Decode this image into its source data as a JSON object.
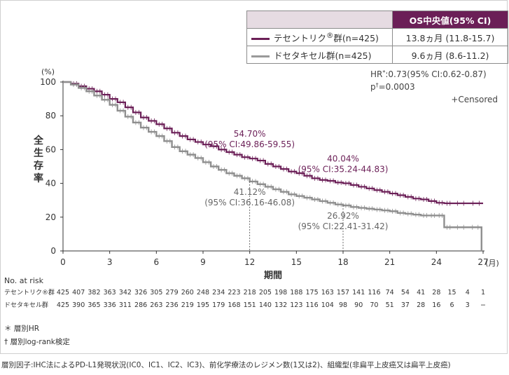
{
  "legend_table": {
    "header": "OS中央値(95% CI)",
    "rows": [
      {
        "name_html": "テセントリク<sup>®</sup>群(n=425)",
        "median": "13.8ヵ月 (11.8-15.7)",
        "color": "#6b1f57"
      },
      {
        "name_html": "ドセタキセル群(n=425)",
        "median": "9.6ヵ月 (8.6-11.2)",
        "color": "#9a9a9a"
      }
    ]
  },
  "stats": {
    "hr_html": "HR<sup>*</sup>:0.73(95% CI:0.62-0.87)",
    "p_html": "p<sup>†</sup>=0.0003",
    "censored": "+Censored"
  },
  "chart_data": {
    "type": "line",
    "ylabel": "全生存率",
    "yunit": "(%)",
    "xlabel": "期間",
    "xunit": "(月)",
    "xlim": [
      0,
      27
    ],
    "ylim": [
      0,
      100
    ],
    "xticks": [
      0,
      3,
      6,
      9,
      12,
      15,
      18,
      21,
      24,
      27
    ],
    "yticks": [
      0,
      20,
      40,
      60,
      80,
      100
    ],
    "series": [
      {
        "name": "テセントリク®群",
        "color": "#6b1f57",
        "points": [
          [
            0,
            100
          ],
          [
            0.5,
            99
          ],
          [
            1,
            97.5
          ],
          [
            1.5,
            96
          ],
          [
            2,
            94.5
          ],
          [
            2.5,
            92.5
          ],
          [
            3,
            90
          ],
          [
            3.5,
            88
          ],
          [
            4,
            85
          ],
          [
            4.5,
            82
          ],
          [
            5,
            79
          ],
          [
            5.5,
            77
          ],
          [
            6,
            75
          ],
          [
            6.5,
            72.5
          ],
          [
            7,
            70
          ],
          [
            7.5,
            68
          ],
          [
            8,
            66
          ],
          [
            8.5,
            64.5
          ],
          [
            9,
            63
          ],
          [
            9.5,
            62
          ],
          [
            10,
            60
          ],
          [
            10.5,
            58.5
          ],
          [
            11,
            57
          ],
          [
            11.5,
            55.5
          ],
          [
            12,
            54.7
          ],
          [
            12.5,
            53.5
          ],
          [
            13,
            51.5
          ],
          [
            13.5,
            50
          ],
          [
            14,
            48.5
          ],
          [
            14.5,
            47
          ],
          [
            15,
            46
          ],
          [
            15.5,
            44.5
          ],
          [
            16,
            43
          ],
          [
            16.5,
            42
          ],
          [
            17,
            41.5
          ],
          [
            17.5,
            40.5
          ],
          [
            18,
            40.04
          ],
          [
            18.5,
            39
          ],
          [
            19,
            38
          ],
          [
            19.5,
            37
          ],
          [
            20,
            36
          ],
          [
            20.5,
            35
          ],
          [
            21,
            34
          ],
          [
            21.5,
            33
          ],
          [
            22,
            32
          ],
          [
            22.5,
            31
          ],
          [
            23,
            30.5
          ],
          [
            23.5,
            29.5
          ],
          [
            24,
            28.5
          ],
          [
            24.5,
            28.2
          ],
          [
            25,
            28.2
          ],
          [
            26,
            28.2
          ],
          [
            27,
            28.2
          ]
        ]
      },
      {
        "name": "ドセタキセル群",
        "color": "#8f8f8f",
        "points": [
          [
            0,
            100
          ],
          [
            0.5,
            98.5
          ],
          [
            1,
            96.5
          ],
          [
            1.5,
            94.5
          ],
          [
            2,
            92
          ],
          [
            2.5,
            89.5
          ],
          [
            3,
            86.5
          ],
          [
            3.5,
            83
          ],
          [
            4,
            79.5
          ],
          [
            4.5,
            76
          ],
          [
            5,
            73
          ],
          [
            5.5,
            70.5
          ],
          [
            6,
            68
          ],
          [
            6.5,
            65
          ],
          [
            7,
            61.5
          ],
          [
            7.5,
            59
          ],
          [
            8,
            57
          ],
          [
            8.5,
            55
          ],
          [
            9,
            52.5
          ],
          [
            9.5,
            50
          ],
          [
            10,
            48
          ],
          [
            10.5,
            46
          ],
          [
            11,
            44.5
          ],
          [
            11.5,
            43
          ],
          [
            12,
            41.12
          ],
          [
            12.5,
            39.5
          ],
          [
            13,
            38
          ],
          [
            13.5,
            36.5
          ],
          [
            14,
            35
          ],
          [
            14.5,
            33.5
          ],
          [
            15,
            32.5
          ],
          [
            15.5,
            31.5
          ],
          [
            16,
            30.5
          ],
          [
            16.5,
            29.5
          ],
          [
            17,
            28.5
          ],
          [
            17.5,
            27.5
          ],
          [
            18,
            26.92
          ],
          [
            18.5,
            26
          ],
          [
            19,
            25.5
          ],
          [
            19.5,
            25
          ],
          [
            20,
            24.5
          ],
          [
            20.5,
            24
          ],
          [
            21,
            23.5
          ],
          [
            21.5,
            22.5
          ],
          [
            22,
            22
          ],
          [
            22.5,
            21.5
          ],
          [
            23,
            21
          ],
          [
            23.5,
            21
          ],
          [
            24,
            21
          ],
          [
            24.5,
            14
          ],
          [
            25,
            14
          ],
          [
            26,
            14
          ],
          [
            26.9,
            14
          ],
          [
            26.9,
            0
          ]
        ]
      }
    ],
    "annotations": [
      {
        "x": 12,
        "y": 54.7,
        "lines": [
          "54.70%",
          "(95% CI:49.86-59.55)"
        ],
        "color": "#6b1f57",
        "pos": "above"
      },
      {
        "x": 18,
        "y": 40.04,
        "lines": [
          "40.04%",
          "(95% CI:35.24-44.83)"
        ],
        "color": "#6b1f57",
        "pos": "above"
      },
      {
        "x": 12,
        "y": 41.12,
        "lines": [
          "41.12%",
          "(95% CI:36.16-46.08)"
        ],
        "color": "#666666",
        "pos": "below"
      },
      {
        "x": 18,
        "y": 26.92,
        "lines": [
          "26.92%",
          "(95% CI:22.41-31.42)"
        ],
        "color": "#666666",
        "pos": "below"
      }
    ],
    "risk_table": {
      "title": "No. at risk",
      "rows": [
        {
          "label": "テセントリク®群",
          "values": [
            "425",
            "407",
            "382",
            "363",
            "342",
            "326",
            "305",
            "279",
            "260",
            "248",
            "234",
            "223",
            "218",
            "205",
            "198",
            "188",
            "175",
            "163",
            "157",
            "141",
            "116",
            "74",
            "54",
            "41",
            "28",
            "15",
            "4",
            "1"
          ]
        },
        {
          "label": "ドセタキセル群",
          "values": [
            "425",
            "390",
            "365",
            "336",
            "311",
            "286",
            "263",
            "236",
            "219",
            "195",
            "179",
            "168",
            "151",
            "140",
            "132",
            "123",
            "116",
            "104",
            "98",
            "90",
            "70",
            "51",
            "37",
            "28",
            "16",
            "6",
            "3",
            "−"
          ]
        }
      ]
    }
  },
  "notes": [
    "＊ 層別HR",
    "† 層別log-rank検定"
  ],
  "footer": "層別因子:IHC法によるPD-L1発現状況(IC0、IC1、IC2、IC3)、前化学療法のレジメン数(1又は2)、組織型(非扁平上皮癌又は扁平上皮癌)"
}
